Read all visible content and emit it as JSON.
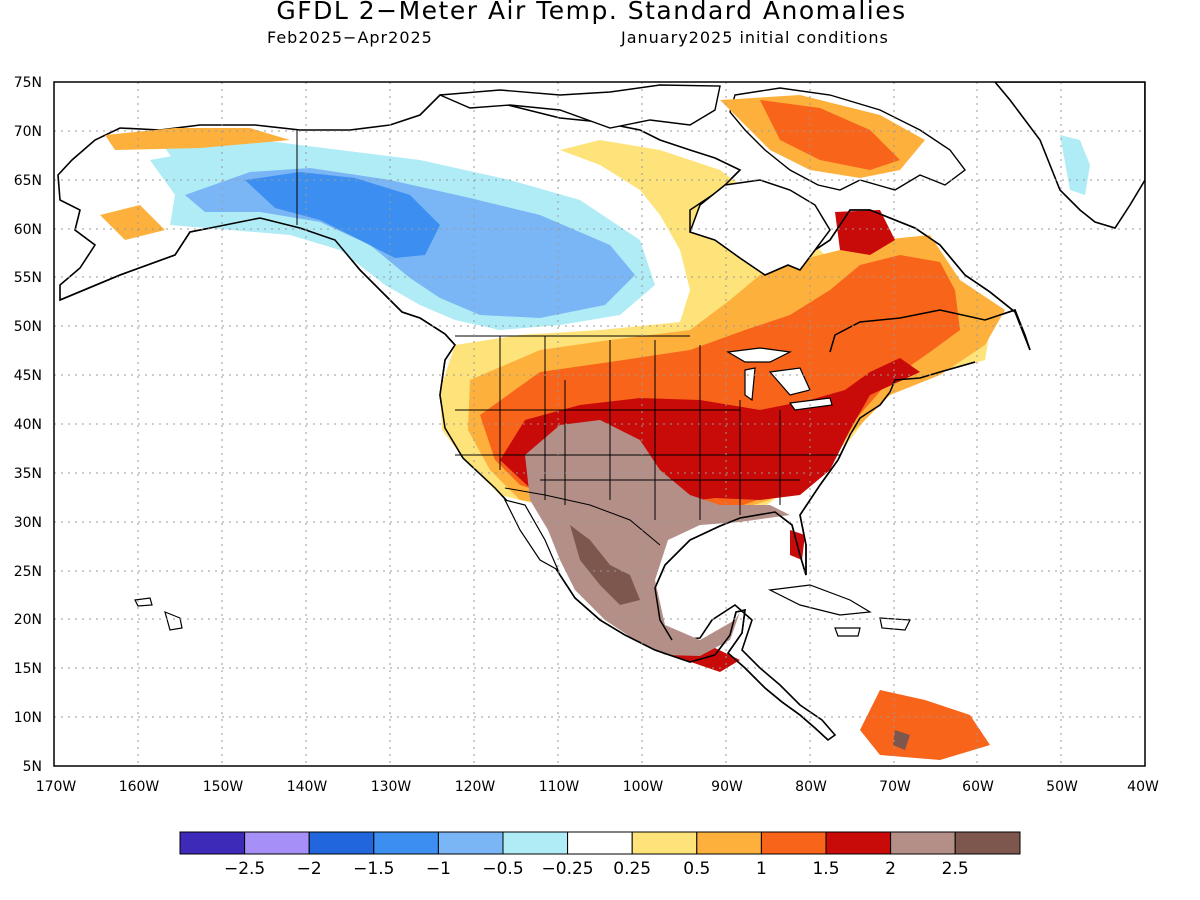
{
  "title": "GFDL 2−Meter Air Temp. Standard Anomalies",
  "subtitle_left": "Feb2025−Apr2025",
  "subtitle_right": "January2025 initial conditions",
  "lat_labels": [
    "75N",
    "70N",
    "65N",
    "60N",
    "55N",
    "50N",
    "45N",
    "40N",
    "35N",
    "30N",
    "25N",
    "20N",
    "15N",
    "10N",
    "5N"
  ],
  "lon_labels": [
    "170W",
    "160W",
    "150W",
    "140W",
    "130W",
    "120W",
    "110W",
    "100W",
    "90W",
    "80W",
    "70W",
    "60W",
    "50W",
    "40W"
  ],
  "colorbar": {
    "colors": [
      "#3d2ab8",
      "#a690f7",
      "#2266dd",
      "#3c8ff0",
      "#7ab6f6",
      "#b0ecf6",
      "#ffffff",
      "#fde37a",
      "#fdb13c",
      "#f7641a",
      "#c80a08",
      "#b48f87",
      "#7d574d"
    ],
    "labels": [
      "−2.5",
      "−2",
      "−1.5",
      "−1",
      "−0.5",
      "−0.25",
      "0.25",
      "0.5",
      "1",
      "1.5",
      "2",
      "2.5"
    ]
  }
}
